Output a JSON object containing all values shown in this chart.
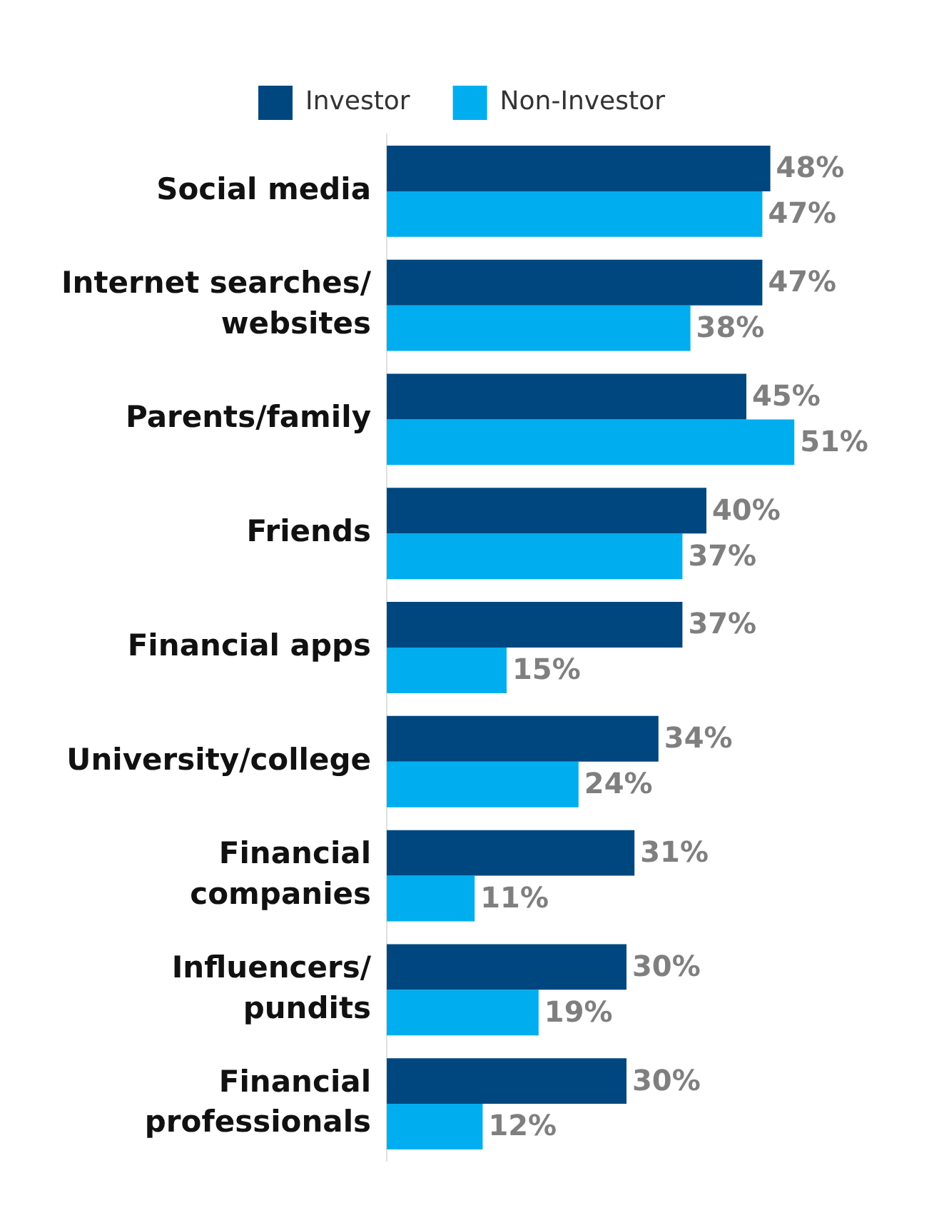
{
  "chart_data": {
    "type": "bar",
    "orientation": "horizontal",
    "categories": [
      "Social media",
      "Internet searches/ websites",
      "Parents/family",
      "Friends",
      "Financial apps",
      "University/college",
      "Financial companies",
      "Influencers/ pundits",
      "Financial professionals"
    ],
    "series": [
      {
        "name": "Investor",
        "color": "#00477f",
        "values": [
          48,
          47,
          45,
          40,
          37,
          34,
          31,
          30,
          30
        ],
        "value_labels": [
          "48%",
          "47%",
          "45%",
          "40%",
          "37%",
          "34%",
          "31%",
          "30%",
          "30%"
        ]
      },
      {
        "name": "Non-Investor",
        "color": "#00aeef",
        "values": [
          47,
          38,
          51,
          37,
          15,
          24,
          11,
          19,
          12
        ],
        "value_labels": [
          "47%",
          "38%",
          "51%",
          "37%",
          "15%",
          "24%",
          "11%",
          "19%",
          "12%"
        ]
      }
    ],
    "legend": "top",
    "tick_labels": "y"
  }
}
